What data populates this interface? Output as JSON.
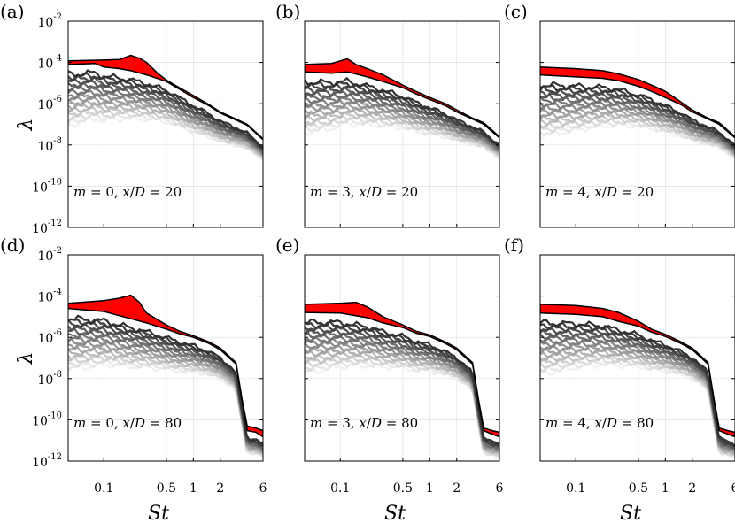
{
  "figure": {
    "ylabel": "λ",
    "xlabel": "St",
    "colors": {
      "leading_band": "#ff0000",
      "band_edge": "#000000",
      "grid": "#e0e0e0",
      "axes": "#000000"
    }
  },
  "chart_data": [
    {
      "type": "line",
      "panel": "(a)",
      "m": 0,
      "xD": 20,
      "annotation": {
        "m": "m",
        "m_val": "= 0,",
        "x": "x",
        "slash": "/",
        "D": "D",
        "x_val": "= 20"
      },
      "x_ticks": [
        "0.1",
        "0.5",
        "1",
        "2",
        "6"
      ],
      "y_ticks": [
        "10",
        "10",
        "10",
        "10",
        "10",
        "10"
      ],
      "y_exps": [
        "-2",
        "-4",
        "-6",
        "-8",
        "-10",
        "-12"
      ],
      "xlim": [
        0.04,
        6
      ],
      "ylim": [
        1e-12,
        0.01
      ],
      "xscale": "log",
      "yscale": "log",
      "leading_upper": [
        [
          0.04,
          0.00012
        ],
        [
          0.1,
          0.00013
        ],
        [
          0.15,
          0.00014
        ],
        [
          0.2,
          0.00022
        ],
        [
          0.25,
          0.00016
        ],
        [
          0.3,
          0.0001
        ],
        [
          0.4,
          3e-05
        ],
        [
          0.5,
          1.4e-05
        ],
        [
          0.7,
          6e-06
        ],
        [
          1,
          2.5e-06
        ],
        [
          1.5,
          9e-07
        ],
        [
          2,
          4e-07
        ],
        [
          3,
          1.8e-07
        ],
        [
          4,
          1e-07
        ],
        [
          6,
          2e-08
        ]
      ],
      "leading_lower": [
        [
          0.04,
          8e-05
        ],
        [
          0.08,
          9e-05
        ],
        [
          0.1,
          6e-05
        ],
        [
          0.15,
          5e-05
        ],
        [
          0.2,
          4e-05
        ],
        [
          0.3,
          2.5e-05
        ],
        [
          0.5,
          1.2e-05
        ],
        [
          0.7,
          5e-06
        ],
        [
          1,
          2e-06
        ],
        [
          1.5,
          8e-07
        ],
        [
          2,
          3.5e-07
        ],
        [
          3,
          1.6e-07
        ],
        [
          4,
          9e-08
        ],
        [
          6,
          1.8e-08
        ]
      ],
      "cutoff": null,
      "num_modes": 20
    },
    {
      "type": "line",
      "panel": "(b)",
      "m": 3,
      "xD": 20,
      "annotation": {
        "m": "m",
        "m_val": "= 3,",
        "x": "x",
        "slash": "/",
        "D": "D",
        "x_val": "= 20"
      },
      "x_ticks": [
        "0.1",
        "0.5",
        "1",
        "2",
        "6"
      ],
      "y_ticks": [
        "10",
        "10",
        "10",
        "10",
        "10",
        "10"
      ],
      "y_exps": [
        "-2",
        "-4",
        "-6",
        "-8",
        "-10",
        "-12"
      ],
      "xlim": [
        0.04,
        6
      ],
      "ylim": [
        1e-12,
        0.01
      ],
      "xscale": "log",
      "yscale": "log",
      "leading_upper": [
        [
          0.04,
          8e-05
        ],
        [
          0.08,
          9e-05
        ],
        [
          0.12,
          0.00015
        ],
        [
          0.15,
          8e-05
        ],
        [
          0.2,
          5e-05
        ],
        [
          0.3,
          2.5e-05
        ],
        [
          0.5,
          8e-06
        ],
        [
          0.7,
          4e-06
        ],
        [
          1,
          2e-06
        ],
        [
          1.5,
          1e-06
        ],
        [
          2,
          5e-07
        ],
        [
          3,
          2e-07
        ],
        [
          4,
          1.2e-07
        ],
        [
          6,
          2.5e-08
        ]
      ],
      "leading_lower": [
        [
          0.04,
          3.5e-05
        ],
        [
          0.08,
          3e-05
        ],
        [
          0.12,
          3.5e-05
        ],
        [
          0.2,
          2e-05
        ],
        [
          0.3,
          1.2e-05
        ],
        [
          0.5,
          6e-06
        ],
        [
          0.7,
          3e-06
        ],
        [
          1,
          1.6e-06
        ],
        [
          1.5,
          8e-07
        ],
        [
          2,
          4e-07
        ],
        [
          3,
          1.8e-07
        ],
        [
          4,
          1e-07
        ],
        [
          6,
          2.2e-08
        ]
      ],
      "cutoff": null,
      "num_modes": 20
    },
    {
      "type": "line",
      "panel": "(c)",
      "m": 4,
      "xD": 20,
      "annotation": {
        "m": "m",
        "m_val": "= 4,",
        "x": "x",
        "slash": "/",
        "D": "D",
        "x_val": "= 20"
      },
      "x_ticks": [
        "0.1",
        "0.5",
        "1",
        "2",
        "6"
      ],
      "y_ticks": [
        "10",
        "10",
        "10",
        "10",
        "10",
        "10"
      ],
      "y_exps": [
        "-2",
        "-4",
        "-6",
        "-8",
        "-10",
        "-12"
      ],
      "xlim": [
        0.04,
        6
      ],
      "ylim": [
        1e-12,
        0.01
      ],
      "xscale": "log",
      "yscale": "log",
      "leading_upper": [
        [
          0.04,
          6e-05
        ],
        [
          0.1,
          5e-05
        ],
        [
          0.2,
          4e-05
        ],
        [
          0.3,
          2.8e-05
        ],
        [
          0.5,
          1.5e-05
        ],
        [
          0.7,
          8e-06
        ],
        [
          1,
          4e-06
        ],
        [
          1.5,
          1.2e-06
        ],
        [
          2,
          5e-07
        ],
        [
          3,
          2e-07
        ],
        [
          4,
          1.2e-07
        ],
        [
          6,
          2.5e-08
        ]
      ],
      "leading_lower": [
        [
          0.04,
          2.5e-05
        ],
        [
          0.1,
          2e-05
        ],
        [
          0.2,
          1.7e-05
        ],
        [
          0.3,
          1.3e-05
        ],
        [
          0.5,
          7e-06
        ],
        [
          0.7,
          4e-06
        ],
        [
          1,
          2e-06
        ],
        [
          1.5,
          9e-07
        ],
        [
          2,
          4e-07
        ],
        [
          3,
          1.8e-07
        ],
        [
          4,
          1e-07
        ],
        [
          6,
          2.2e-08
        ]
      ],
      "cutoff": null,
      "num_modes": 20
    },
    {
      "type": "line",
      "panel": "(d)",
      "m": 0,
      "xD": 80,
      "annotation": {
        "m": "m",
        "m_val": "= 0,",
        "x": "x",
        "slash": "/",
        "D": "D",
        "x_val": "= 80"
      },
      "x_ticks": [
        "0.1",
        "0.5",
        "1",
        "2",
        "6"
      ],
      "y_ticks": [
        "10",
        "10",
        "10",
        "10",
        "10",
        "10"
      ],
      "y_exps": [
        "-2",
        "-4",
        "-6",
        "-8",
        "-10",
        "-12"
      ],
      "xlim": [
        0.04,
        6
      ],
      "ylim": [
        1e-12,
        0.01
      ],
      "xscale": "log",
      "yscale": "log",
      "leading_upper": [
        [
          0.04,
          4.5e-05
        ],
        [
          0.1,
          6e-05
        ],
        [
          0.15,
          8e-05
        ],
        [
          0.2,
          0.00011
        ],
        [
          0.25,
          5e-05
        ],
        [
          0.3,
          1.5e-05
        ],
        [
          0.5,
          4e-06
        ],
        [
          0.7,
          2e-06
        ],
        [
          1,
          1.2e-06
        ],
        [
          1.5,
          6e-07
        ],
        [
          2,
          3e-07
        ],
        [
          3,
          6e-08
        ],
        [
          3.5,
          1e-09
        ],
        [
          4,
          5e-11
        ],
        [
          5,
          4e-11
        ],
        [
          6,
          3e-11
        ]
      ],
      "leading_lower": [
        [
          0.04,
          2.5e-05
        ],
        [
          0.1,
          1.8e-05
        ],
        [
          0.2,
          8e-06
        ],
        [
          0.3,
          5e-06
        ],
        [
          0.5,
          2.5e-06
        ],
        [
          0.7,
          1.5e-06
        ],
        [
          1,
          1e-06
        ],
        [
          1.5,
          5e-07
        ],
        [
          2,
          2.5e-07
        ],
        [
          3,
          5e-08
        ],
        [
          3.5,
          8e-10
        ],
        [
          4,
          3e-11
        ],
        [
          5,
          2.5e-11
        ],
        [
          6,
          1.5e-11
        ]
      ],
      "cutoff": 3.3,
      "num_modes": 20
    },
    {
      "type": "line",
      "panel": "(e)",
      "m": 3,
      "xD": 80,
      "annotation": {
        "m": "m",
        "m_val": "= 3,",
        "x": "x",
        "slash": "/",
        "D": "D",
        "x_val": "= 80"
      },
      "x_ticks": [
        "0.1",
        "0.5",
        "1",
        "2",
        "6"
      ],
      "y_ticks": [
        "10",
        "10",
        "10",
        "10",
        "10",
        "10"
      ],
      "y_exps": [
        "-2",
        "-4",
        "-6",
        "-8",
        "-10",
        "-12"
      ],
      "xlim": [
        0.04,
        6
      ],
      "ylim": [
        1e-12,
        0.01
      ],
      "xscale": "log",
      "yscale": "log",
      "leading_upper": [
        [
          0.04,
          4e-05
        ],
        [
          0.1,
          4.5e-05
        ],
        [
          0.15,
          5e-05
        ],
        [
          0.2,
          3e-05
        ],
        [
          0.3,
          1e-05
        ],
        [
          0.5,
          4e-06
        ],
        [
          0.7,
          2e-06
        ],
        [
          1,
          1.3e-06
        ],
        [
          1.5,
          6e-07
        ],
        [
          2,
          3e-07
        ],
        [
          3,
          6e-08
        ],
        [
          3.5,
          1e-09
        ],
        [
          4,
          4e-11
        ],
        [
          5,
          3e-11
        ],
        [
          6,
          2.5e-11
        ]
      ],
      "leading_lower": [
        [
          0.04,
          1.6e-05
        ],
        [
          0.1,
          1.5e-05
        ],
        [
          0.2,
          9e-06
        ],
        [
          0.3,
          5e-06
        ],
        [
          0.5,
          3e-06
        ],
        [
          0.7,
          1.6e-06
        ],
        [
          1,
          1.1e-06
        ],
        [
          1.5,
          5e-07
        ],
        [
          2,
          2.5e-07
        ],
        [
          3,
          5e-08
        ],
        [
          3.5,
          8e-10
        ],
        [
          4,
          3e-11
        ],
        [
          5,
          2e-11
        ],
        [
          6,
          1.5e-11
        ]
      ],
      "cutoff": 3.3,
      "num_modes": 20
    },
    {
      "type": "line",
      "panel": "(f)",
      "m": 4,
      "xD": 80,
      "annotation": {
        "m": "m",
        "m_val": "= 4,",
        "x": "x",
        "slash": "/",
        "D": "D",
        "x_val": "= 80"
      },
      "x_ticks": [
        "0.1",
        "0.5",
        "1",
        "2",
        "6"
      ],
      "y_ticks": [
        "10",
        "10",
        "10",
        "10",
        "10",
        "10"
      ],
      "y_exps": [
        "-2",
        "-4",
        "-6",
        "-8",
        "-10",
        "-12"
      ],
      "xlim": [
        0.04,
        6
      ],
      "ylim": [
        1e-12,
        0.01
      ],
      "xscale": "log",
      "yscale": "log",
      "leading_upper": [
        [
          0.04,
          4e-05
        ],
        [
          0.1,
          3.5e-05
        ],
        [
          0.2,
          2.5e-05
        ],
        [
          0.3,
          1.6e-05
        ],
        [
          0.5,
          6e-06
        ],
        [
          0.7,
          2.5e-06
        ],
        [
          1,
          1.4e-06
        ],
        [
          1.5,
          6e-07
        ],
        [
          2,
          3e-07
        ],
        [
          3,
          6e-08
        ],
        [
          3.5,
          1e-09
        ],
        [
          4,
          4e-11
        ],
        [
          5,
          3e-11
        ],
        [
          6,
          2.5e-11
        ]
      ],
      "leading_lower": [
        [
          0.04,
          1.5e-05
        ],
        [
          0.1,
          1.3e-05
        ],
        [
          0.2,
          1e-05
        ],
        [
          0.3,
          6e-06
        ],
        [
          0.5,
          3.5e-06
        ],
        [
          0.7,
          1.8e-06
        ],
        [
          1,
          1.1e-06
        ],
        [
          1.5,
          5e-07
        ],
        [
          2,
          2.5e-07
        ],
        [
          3,
          5e-08
        ],
        [
          3.5,
          8e-10
        ],
        [
          4,
          3e-11
        ],
        [
          5,
          2e-11
        ],
        [
          6,
          1.5e-11
        ]
      ],
      "cutoff": 3.3,
      "num_modes": 20
    }
  ]
}
